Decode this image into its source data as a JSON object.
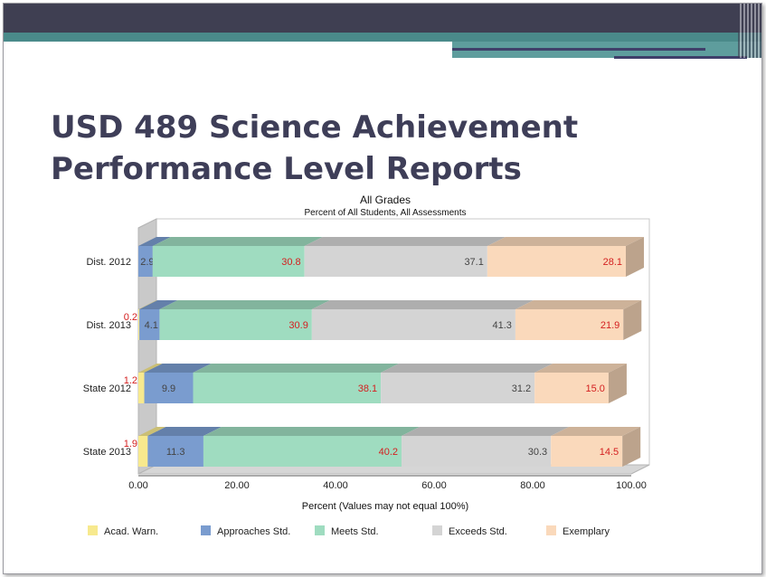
{
  "slide": {
    "title_line1": "USD 489 Science Achievement",
    "title_line2": "Performance Level Reports"
  },
  "chart_data": {
    "type": "bar",
    "orientation": "horizontal",
    "stacked": true,
    "title": "All Grades",
    "subtitle": "Percent of All Students, All Assessments",
    "xlabel": "Percent (Values may not equal 100%)",
    "xlim": [
      0,
      100
    ],
    "xticks": [
      "0.00",
      "20.00",
      "40.00",
      "60.00",
      "80.00",
      "100.00"
    ],
    "categories": [
      "Dist. 2012",
      "Dist. 2013",
      "State 2012",
      "State 2013"
    ],
    "series": [
      {
        "name": "Acad. Warn.",
        "color": "#f7e98e",
        "values": [
          0,
          0.2,
          1.2,
          1.9
        ],
        "labels": [
          "",
          "0.2",
          "1.2",
          "1.9"
        ],
        "label_color": "#d42020"
      },
      {
        "name": "Approaches Std.",
        "color": "#7a9ccf",
        "values": [
          2.9,
          4.1,
          9.9,
          11.3
        ],
        "labels": [
          "2.9",
          "4.1",
          "9.9",
          "11.3"
        ],
        "label_color": "#444444"
      },
      {
        "name": "Meets Std.",
        "color": "#9fdcc0",
        "values": [
          30.8,
          30.9,
          38.1,
          40.2
        ],
        "labels": [
          "30.8",
          "30.9",
          "38.1",
          "40.2"
        ],
        "label_color": "#d42020"
      },
      {
        "name": "Exceeds Std.",
        "color": "#d4d4d4",
        "values": [
          37.1,
          41.3,
          31.2,
          30.3
        ],
        "labels": [
          "37.1",
          "41.3",
          "31.2",
          "30.3"
        ],
        "label_color": "#444444"
      },
      {
        "name": "Exemplary",
        "color": "#fad9bb",
        "values": [
          28.1,
          21.9,
          15.0,
          14.5
        ],
        "labels": [
          "28.1",
          "21.9",
          "15.0",
          "14.5"
        ],
        "label_color": "#d42020"
      }
    ],
    "legend_position": "bottom",
    "grid": false
  }
}
